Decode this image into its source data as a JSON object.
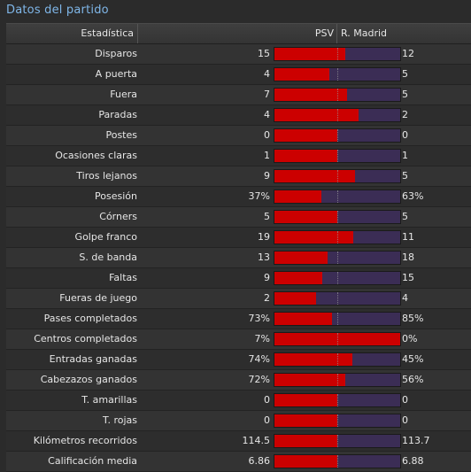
{
  "title": "Datos del partido",
  "header": {
    "stat": "Estadística",
    "home": "PSV",
    "away": "R. Madrid"
  },
  "colors": {
    "home": "#cc0000",
    "away": "#3b2d55"
  },
  "rows": [
    {
      "label": "Disparos",
      "home": "15",
      "away": "12",
      "home_share": 0.56
    },
    {
      "label": "A puerta",
      "home": "4",
      "away": "5",
      "home_share": 0.44
    },
    {
      "label": "Fuera",
      "home": "7",
      "away": "5",
      "home_share": 0.58
    },
    {
      "label": "Paradas",
      "home": "4",
      "away": "2",
      "home_share": 0.67
    },
    {
      "label": "Postes",
      "home": "0",
      "away": "0",
      "home_share": 0.5
    },
    {
      "label": "Ocasiones claras",
      "home": "1",
      "away": "1",
      "home_share": 0.5
    },
    {
      "label": "Tiros lejanos",
      "home": "9",
      "away": "5",
      "home_share": 0.64
    },
    {
      "label": "Posesión",
      "home": "37%",
      "away": "63%",
      "home_share": 0.37
    },
    {
      "label": "Córners",
      "home": "5",
      "away": "5",
      "home_share": 0.5
    },
    {
      "label": "Golpe franco",
      "home": "19",
      "away": "11",
      "home_share": 0.63
    },
    {
      "label": "S. de banda",
      "home": "13",
      "away": "18",
      "home_share": 0.42
    },
    {
      "label": "Faltas",
      "home": "9",
      "away": "15",
      "home_share": 0.38
    },
    {
      "label": "Fueras de juego",
      "home": "2",
      "away": "4",
      "home_share": 0.33
    },
    {
      "label": "Pases completados",
      "home": "73%",
      "away": "85%",
      "home_share": 0.46
    },
    {
      "label": "Centros completados",
      "home": "7%",
      "away": "0%",
      "home_share": 1.0
    },
    {
      "label": "Entradas ganadas",
      "home": "74%",
      "away": "45%",
      "home_share": 0.62
    },
    {
      "label": "Cabezazos ganados",
      "home": "72%",
      "away": "56%",
      "home_share": 0.56
    },
    {
      "label": "T. amarillas",
      "home": "0",
      "away": "0",
      "home_share": 0.5
    },
    {
      "label": "T. rojas",
      "home": "0",
      "away": "0",
      "home_share": 0.5
    },
    {
      "label": "Kilómetros recorridos",
      "home": "114.5",
      "away": "113.7",
      "home_share": 0.5
    },
    {
      "label": "Calificación media",
      "home": "6.86",
      "away": "6.88",
      "home_share": 0.5
    }
  ]
}
